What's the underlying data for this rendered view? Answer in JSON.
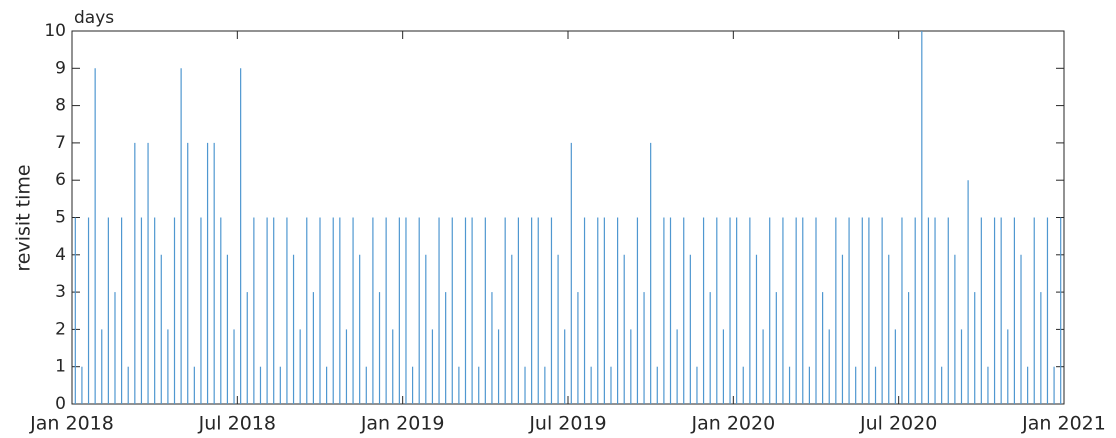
{
  "chart_data": {
    "type": "bar",
    "y_label": "revisit time",
    "y_unit": "days",
    "color": "#4f97d0",
    "xlim": [
      2018,
      2021
    ],
    "xticks": [
      {
        "value": 2018,
        "label": "Jan 2018"
      },
      {
        "value": 2018.5,
        "label": "Jul 2018"
      },
      {
        "value": 2019,
        "label": "Jan 2019"
      },
      {
        "value": 2019.5,
        "label": "Jul 2019"
      },
      {
        "value": 2020,
        "label": "Jan 2020"
      },
      {
        "value": 2020.5,
        "label": "Jul 2020"
      },
      {
        "value": 2021,
        "label": "Jan 2021"
      }
    ],
    "ylim": [
      0,
      10
    ],
    "yticks": [
      0,
      1,
      2,
      3,
      4,
      5,
      6,
      7,
      8,
      9,
      10
    ],
    "grid": false,
    "x": [
      2018.01,
      2018.03,
      2018.05,
      2018.07,
      2018.09,
      2018.11,
      2018.13,
      2018.15,
      2018.17,
      2018.19,
      2018.21,
      2018.23,
      2018.25,
      2018.27,
      2018.29,
      2018.31,
      2018.33,
      2018.35,
      2018.37,
      2018.39,
      2018.41,
      2018.43,
      2018.45,
      2018.47,
      2018.49,
      2018.51,
      2018.53,
      2018.55,
      2018.57,
      2018.59,
      2018.61,
      2018.63,
      2018.65,
      2018.67,
      2018.69,
      2018.71,
      2018.73,
      2018.75,
      2018.77,
      2018.79,
      2018.81,
      2018.83,
      2018.85,
      2018.87,
      2018.89,
      2018.91,
      2018.93,
      2018.95,
      2018.97,
      2018.99,
      2019.01,
      2019.03,
      2019.05,
      2019.07,
      2019.09,
      2019.11,
      2019.13,
      2019.15,
      2019.17,
      2019.19,
      2019.21,
      2019.23,
      2019.25,
      2019.27,
      2019.29,
      2019.31,
      2019.33,
      2019.35,
      2019.37,
      2019.39,
      2019.41,
      2019.43,
      2019.45,
      2019.47,
      2019.49,
      2019.51,
      2019.53,
      2019.55,
      2019.57,
      2019.59,
      2019.61,
      2019.63,
      2019.65,
      2019.67,
      2019.69,
      2019.71,
      2019.73,
      2019.75,
      2019.77,
      2019.79,
      2019.81,
      2019.83,
      2019.85,
      2019.87,
      2019.89,
      2019.91,
      2019.93,
      2019.95,
      2019.97,
      2019.99,
      2020.01,
      2020.03,
      2020.05,
      2020.07,
      2020.09,
      2020.11,
      2020.13,
      2020.15,
      2020.17,
      2020.19,
      2020.21,
      2020.23,
      2020.25,
      2020.27,
      2020.29,
      2020.31,
      2020.33,
      2020.35,
      2020.37,
      2020.39,
      2020.41,
      2020.43,
      2020.45,
      2020.47,
      2020.49,
      2020.51,
      2020.53,
      2020.55,
      2020.57,
      2020.59,
      2020.61,
      2020.63,
      2020.65,
      2020.67,
      2020.69,
      2020.71,
      2020.73,
      2020.75,
      2020.77,
      2020.79,
      2020.81,
      2020.83,
      2020.85,
      2020.87,
      2020.89,
      2020.91,
      2020.93,
      2020.95,
      2020.97,
      2020.99
    ],
    "values": [
      5,
      1,
      5,
      9,
      2,
      5,
      3,
      5,
      1,
      7,
      5,
      7,
      5,
      4,
      2,
      5,
      9,
      7,
      1,
      5,
      7,
      7,
      5,
      4,
      2,
      9,
      3,
      5,
      1,
      5,
      5,
      1,
      5,
      4,
      2,
      5,
      3,
      5,
      1,
      5,
      5,
      2,
      5,
      4,
      1,
      5,
      3,
      5,
      2,
      5,
      5,
      1,
      5,
      4,
      2,
      5,
      3,
      5,
      1,
      5,
      5,
      1,
      5,
      3,
      2,
      5,
      4,
      5,
      1,
      5,
      5,
      1,
      5,
      4,
      2,
      7,
      3,
      5,
      1,
      5,
      5,
      1,
      5,
      4,
      2,
      5,
      3,
      7,
      1,
      5,
      5,
      2,
      5,
      4,
      1,
      5,
      3,
      5,
      2,
      5,
      5,
      1,
      5,
      4,
      2,
      5,
      3,
      5,
      1,
      5,
      5,
      1,
      5,
      3,
      2,
      5,
      4,
      5,
      1,
      5,
      5,
      1,
      5,
      4,
      2,
      5,
      3,
      5,
      10,
      5,
      5,
      1,
      5,
      4,
      2,
      6,
      3,
      5,
      1,
      5,
      5,
      2,
      5,
      4,
      1,
      5,
      3,
      5,
      1,
      5
    ]
  }
}
